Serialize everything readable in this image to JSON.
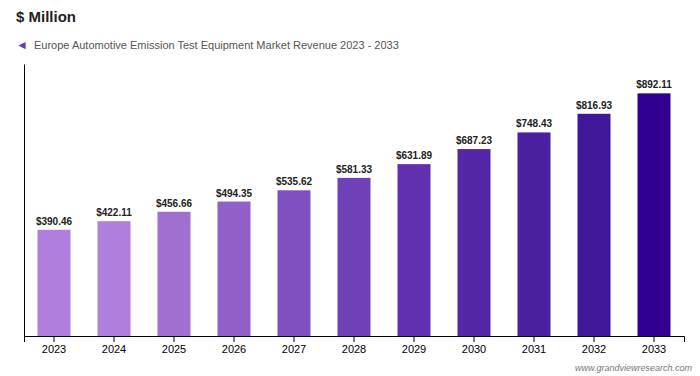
{
  "chart_data": {
    "type": "bar",
    "title": "$ Million",
    "subtitle": "Europe Automotive Emission Test Equipment Market Revenue 2023 - 2033",
    "annotations": [
      "◄",
      "www.grandviewresearch.com"
    ],
    "categories": [
      "2023",
      "2024",
      "2025",
      "2026",
      "2027",
      "2028",
      "2029",
      "2030",
      "2031",
      "2032",
      "2033"
    ],
    "values": [
      390.46,
      422.11,
      456.66,
      494.35,
      535.62,
      581.33,
      631.89,
      687.23,
      748.43,
      816.93,
      892.11
    ],
    "value_labels": [
      "$390.46",
      "$422.11",
      "$456.66",
      "$494.35",
      "$535.62",
      "$581.33",
      "$631.89",
      "$687.23",
      "$748.43",
      "$816.93",
      "$892.11"
    ],
    "colors": [
      "#b07fde",
      "#b07fde",
      "#a070d0",
      "#9060c8",
      "#8050c0",
      "#7040b8",
      "#6030b0",
      "#5525a8",
      "#4a1fa0",
      "#3e1898",
      "#320090"
    ],
    "ylim": [
      0,
      1000
    ],
    "data_labels": true,
    "tick_labels": "x",
    "grid": false
  }
}
